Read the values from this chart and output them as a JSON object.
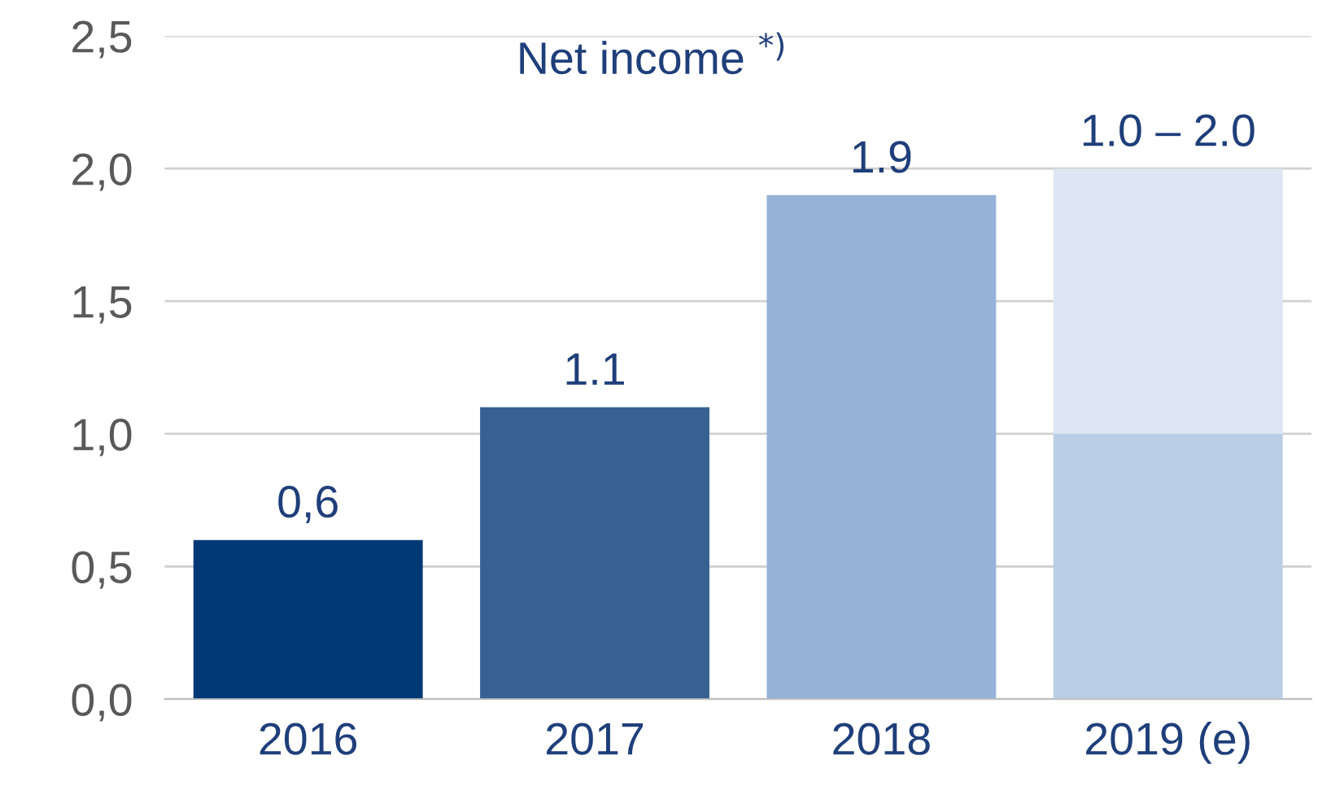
{
  "chart_data": {
    "type": "bar",
    "title": "Net income $^{*)}$",
    "categories": [
      "2016",
      "2017",
      "2018",
      "2019 (e)"
    ],
    "stacked": true,
    "series": [
      {
        "colors": [
          "#003876",
          "#376191",
          "#95b3d7",
          "#b9cde5"
        ],
        "values": [
          0.6,
          1.1,
          1.9,
          1.0
        ],
        "value_labels": [
          "0,6",
          "1.1",
          "1.9",
          null
        ]
      },
      {
        "colors": [
          "#dce6f2",
          "#dce6f2",
          "#dce6f2",
          "#dce6f2"
        ],
        "values": [
          null,
          null,
          null,
          1.0
        ],
        "value_labels": [
          null,
          null,
          null,
          "1.0 – 2.0"
        ]
      }
    ],
    "ylim": [
      0,
      2.5
    ],
    "yticks": [
      {
        "value": 0,
        "label": "0,0"
      },
      {
        "value": 0.5,
        "label": "0,5"
      },
      {
        "value": 1.0,
        "label": "1,0"
      },
      {
        "value": 1.5,
        "label": "1,5"
      },
      {
        "value": 2.0,
        "label": "2,0"
      },
      {
        "value": 2.5,
        "label": "2,5"
      }
    ],
    "grid": "y",
    "legend": false
  }
}
